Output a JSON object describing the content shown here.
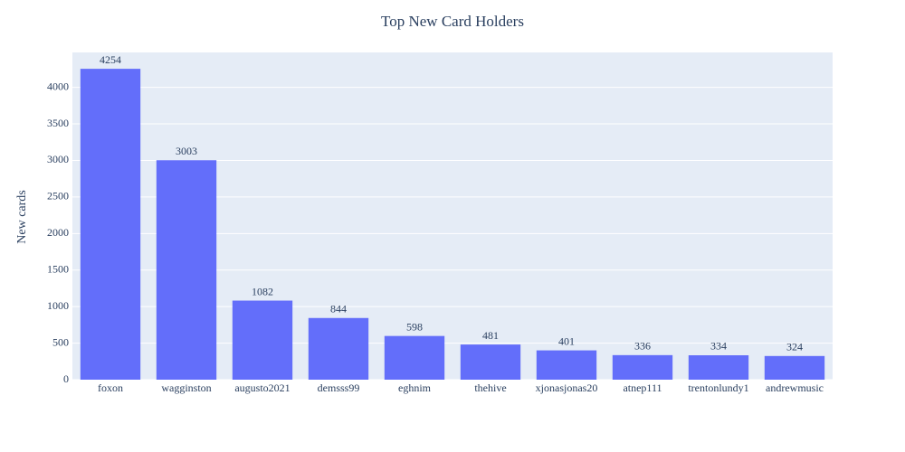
{
  "chart_data": {
    "type": "bar",
    "title": "Top New Card Holders",
    "y_label": "New cards",
    "categories": [
      "foxon",
      "wagginston",
      "augusto2021",
      "demsss99",
      "eghnim",
      "thehive",
      "xjonasjonas20",
      "atnep111",
      "trentonlundy1",
      "andrewmusic"
    ],
    "values": [
      4254,
      3003,
      1082,
      844,
      598,
      481,
      401,
      336,
      334,
      324
    ],
    "color": "#636efa",
    "ylim": [
      0,
      4478
    ],
    "yticks": [
      0,
      500,
      1000,
      1500,
      2000,
      2500,
      3000,
      3500,
      4000
    ],
    "grid": true
  }
}
